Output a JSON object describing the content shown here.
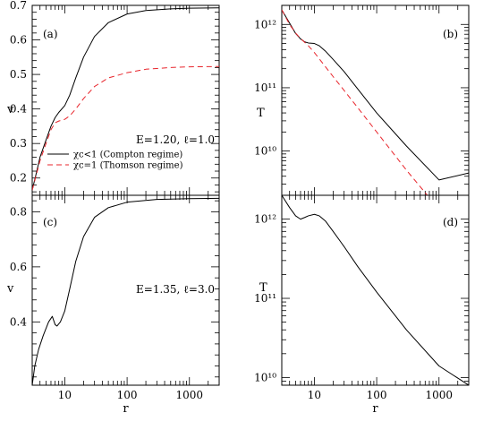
{
  "chart_data": [
    {
      "type": "line",
      "panel_label": "(a)",
      "xlabel": "",
      "ylabel": "v",
      "xscale": "log",
      "xlim": [
        3,
        3000
      ],
      "ylim": [
        0.15,
        0.7
      ],
      "x_ticks": [
        "10",
        "100",
        "1000"
      ],
      "y_ticks": [
        "0.2",
        "0.3",
        "0.4",
        "0.5",
        "0.6",
        "0.7"
      ],
      "annotation": "E=1.20, ℓ=1.0",
      "legend_position": "middle-left",
      "legend": [
        "χc<1 (Compton regime)",
        "χc=1 (Thomson regime)"
      ],
      "series": [
        {
          "name": "χc<1 (Compton regime)",
          "color": "#000000",
          "dash": "solid",
          "points": [
            [
              3,
              0.165
            ],
            [
              3.5,
              0.215
            ],
            [
              4,
              0.26
            ],
            [
              5,
              0.31
            ],
            [
              6,
              0.35
            ],
            [
              7,
              0.375
            ],
            [
              8,
              0.39
            ],
            [
              10,
              0.41
            ],
            [
              12,
              0.44
            ],
            [
              15,
              0.49
            ],
            [
              20,
              0.55
            ],
            [
              30,
              0.61
            ],
            [
              50,
              0.65
            ],
            [
              100,
              0.675
            ],
            [
              200,
              0.685
            ],
            [
              500,
              0.69
            ],
            [
              1000,
              0.692
            ],
            [
              3000,
              0.693
            ]
          ]
        },
        {
          "name": "χc=1 (Thomson regime)",
          "color": "#e8242b",
          "dash": "dashed",
          "points": [
            [
              3,
              0.165
            ],
            [
              3.5,
              0.21
            ],
            [
              4,
              0.25
            ],
            [
              5,
              0.3
            ],
            [
              6,
              0.34
            ],
            [
              7,
              0.36
            ],
            [
              8,
              0.365
            ],
            [
              10,
              0.37
            ],
            [
              12,
              0.38
            ],
            [
              15,
              0.4
            ],
            [
              20,
              0.43
            ],
            [
              30,
              0.465
            ],
            [
              50,
              0.49
            ],
            [
              100,
              0.505
            ],
            [
              200,
              0.515
            ],
            [
              500,
              0.52
            ],
            [
              1000,
              0.522
            ],
            [
              3000,
              0.523
            ]
          ]
        }
      ]
    },
    {
      "type": "line",
      "panel_label": "(b)",
      "xlabel": "",
      "ylabel": "T",
      "xscale": "log",
      "yscale": "log",
      "xlim": [
        3,
        3000
      ],
      "ylim": [
        2000000000.0,
        2000000000000.0
      ],
      "x_ticks": [
        "10",
        "100",
        "1000"
      ],
      "y_ticks": [
        "10¹²",
        "10¹¹",
        "10¹⁰"
      ],
      "series": [
        {
          "name": "χc<1 (Compton regime)",
          "color": "#000000",
          "dash": "solid",
          "points": [
            [
              3,
              1700000000000.0
            ],
            [
              4,
              1050000000000.0
            ],
            [
              5,
              720000000000.0
            ],
            [
              6,
              590000000000.0
            ],
            [
              7,
              530000000000.0
            ],
            [
              8,
              510000000000.0
            ],
            [
              10,
              500000000000.0
            ],
            [
              12,
              460000000000.0
            ],
            [
              15,
              380000000000.0
            ],
            [
              20,
              280000000000.0
            ],
            [
              30,
              180000000000.0
            ],
            [
              50,
              95000000000.0
            ],
            [
              100,
              40000000000.0
            ],
            [
              300,
              12000000000.0
            ],
            [
              1000,
              3500000000.0
            ],
            [
              3000,
              4500000000.0
            ]
          ]
        },
        {
          "name": "χc=1 (Thomson regime)",
          "color": "#e8242b",
          "dash": "dashed",
          "points": [
            [
              3,
              1700000000000.0
            ],
            [
              4,
              1000000000000.0
            ],
            [
              5,
              730000000000.0
            ],
            [
              6,
              600000000000.0
            ],
            [
              8,
              460000000000.0
            ],
            [
              10,
              360000000000.0
            ],
            [
              20,
              150000000000.0
            ],
            [
              50,
              48000000000.0
            ],
            [
              100,
              20000000000.0
            ],
            [
              300,
              5000000000.0
            ],
            [
              1000,
              1200000000.0
            ],
            [
              3000,
              2000000000.0
            ]
          ]
        }
      ]
    },
    {
      "type": "line",
      "panel_label": "(c)",
      "xlabel": "r",
      "ylabel": "v",
      "xscale": "log",
      "xlim": [
        3,
        3000
      ],
      "ylim": [
        0.17,
        0.86
      ],
      "x_ticks": [
        "10",
        "100",
        "1000"
      ],
      "y_ticks": [
        "0.4",
        "0.6",
        "0.8"
      ],
      "annotation": "E=1.35, ℓ=3.0",
      "series": [
        {
          "name": "",
          "color": "#000000",
          "dash": "solid",
          "points": [
            [
              3,
              0.17
            ],
            [
              3.3,
              0.24
            ],
            [
              3.8,
              0.3
            ],
            [
              4.5,
              0.35
            ],
            [
              5.5,
              0.4
            ],
            [
              6.3,
              0.42
            ],
            [
              7,
              0.39
            ],
            [
              7.5,
              0.385
            ],
            [
              8.5,
              0.4
            ],
            [
              10,
              0.44
            ],
            [
              12,
              0.52
            ],
            [
              15,
              0.62
            ],
            [
              20,
              0.71
            ],
            [
              30,
              0.78
            ],
            [
              50,
              0.815
            ],
            [
              100,
              0.835
            ],
            [
              300,
              0.845
            ],
            [
              1000,
              0.848
            ],
            [
              3000,
              0.849
            ]
          ]
        }
      ]
    },
    {
      "type": "line",
      "panel_label": "(d)",
      "xlabel": "r",
      "ylabel": "T",
      "xscale": "log",
      "yscale": "log",
      "xlim": [
        3,
        3000
      ],
      "ylim": [
        8000000000.0,
        2000000000000.0
      ],
      "x_ticks": [
        "10",
        "100",
        "1000"
      ],
      "y_ticks": [
        "10¹²",
        "10¹¹",
        "10¹⁰"
      ],
      "series": [
        {
          "name": "",
          "color": "#000000",
          "dash": "solid",
          "points": [
            [
              3,
              2000000000000.0
            ],
            [
              4,
              1400000000000.0
            ],
            [
              5,
              1100000000000.0
            ],
            [
              6,
              1000000000000.0
            ],
            [
              7,
              1050000000000.0
            ],
            [
              8,
              1100000000000.0
            ],
            [
              10,
              1150000000000.0
            ],
            [
              12,
              1100000000000.0
            ],
            [
              15,
              950000000000.0
            ],
            [
              20,
              700000000000.0
            ],
            [
              30,
              450000000000.0
            ],
            [
              50,
              250000000000.0
            ],
            [
              100,
              120000000000.0
            ],
            [
              300,
              40000000000.0
            ],
            [
              1000,
              14000000000.0
            ],
            [
              3000,
              8000000000.0
            ]
          ]
        }
      ]
    }
  ]
}
